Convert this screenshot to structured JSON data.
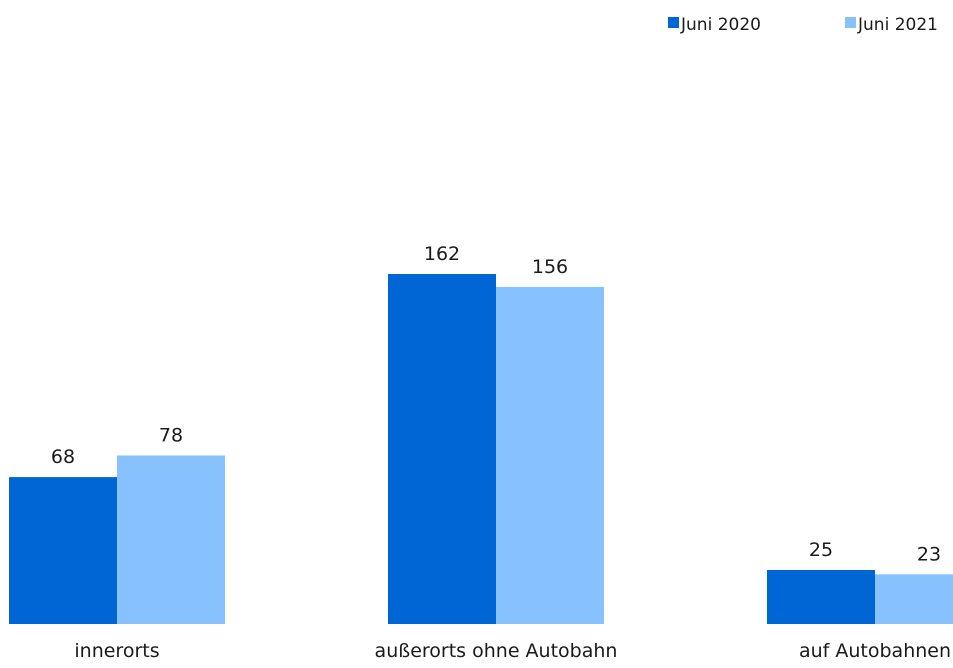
{
  "chart_data": {
    "type": "bar",
    "categories": [
      "innerorts",
      "außerorts ohne Autobahn",
      "auf Autobahnen"
    ],
    "series": [
      {
        "name": "Juni 2020",
        "values": [
          68,
          162,
          25
        ],
        "color": "#0066d6"
      },
      {
        "name": "Juni 2021",
        "values": [
          78,
          156,
          23
        ],
        "color": "#87c2ff"
      }
    ],
    "ylim": [
      0,
      162
    ],
    "grid": false,
    "legend_position": "top-right",
    "data_labels": true
  }
}
